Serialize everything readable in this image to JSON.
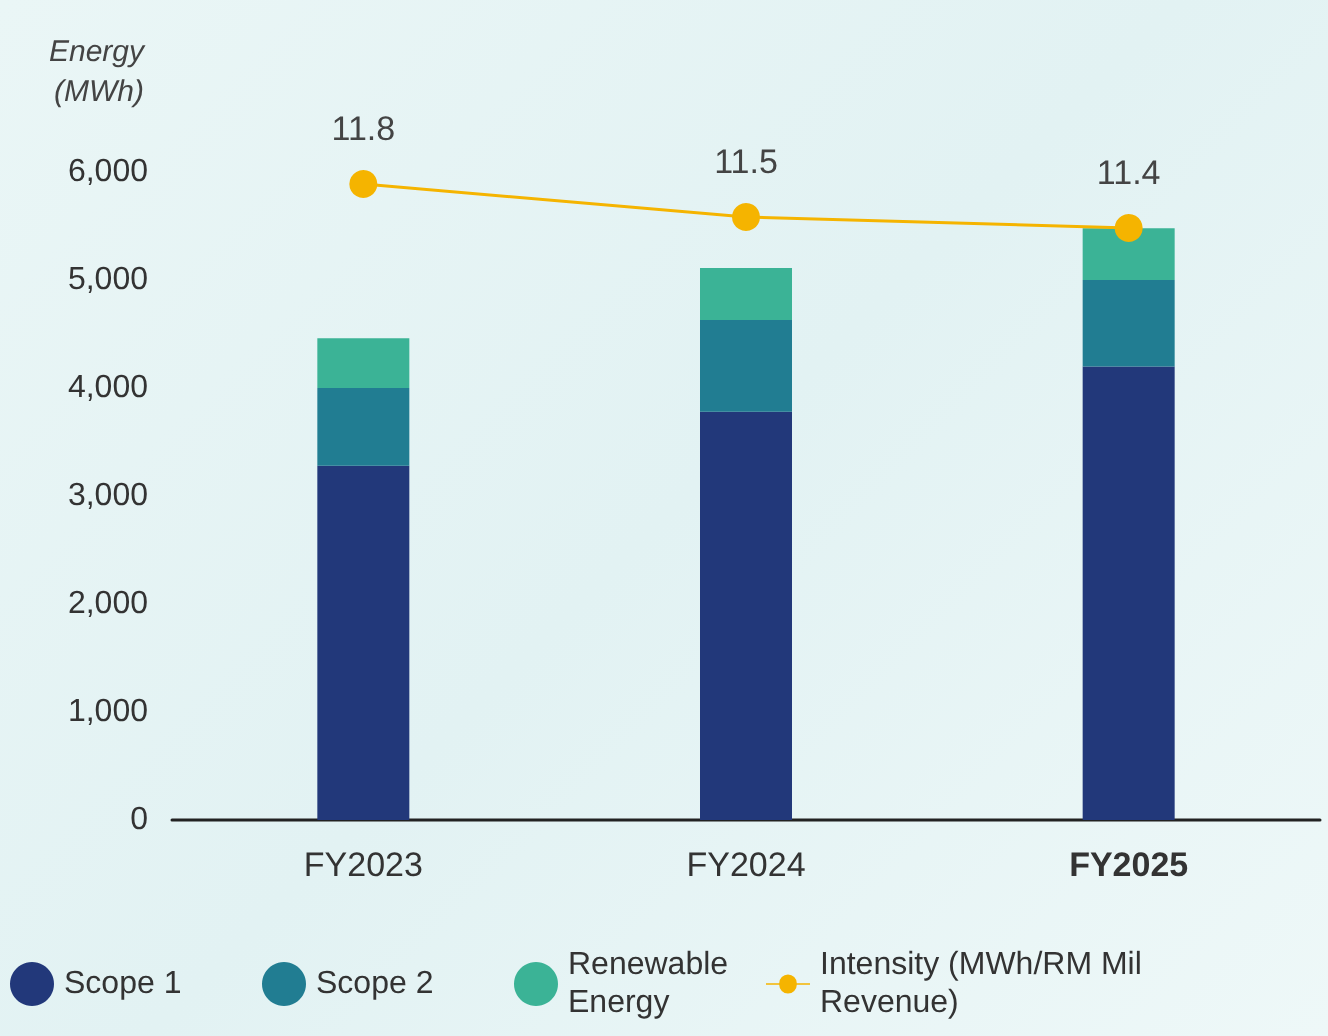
{
  "chart_data": {
    "type": "bar",
    "stacked": true,
    "ylabel": "Energy\n(MWh)",
    "categories": [
      "FY2023",
      "FY2024",
      "FY2025"
    ],
    "series": [
      {
        "name": "Scope 1",
        "color": "#22387a",
        "values": [
          3280,
          3780,
          4200
        ]
      },
      {
        "name": "Scope 2",
        "color": "#217d92",
        "values": [
          720,
          850,
          800
        ]
      },
      {
        "name": "Renewable Energy",
        "color": "#3bb396",
        "values": [
          460,
          480,
          480
        ]
      },
      {
        "name": "Intensity (MWh/RM Mil Revenue)",
        "type": "line",
        "axis": "y2",
        "color": "#f5b400",
        "values": [
          11.8,
          11.5,
          11.4
        ],
        "data_labels": true,
        "marker": "circle"
      }
    ],
    "ylim": [
      0,
      6000
    ],
    "yticks": [
      {
        "value": 0,
        "label": "0"
      },
      {
        "value": 1000,
        "label": "1,000"
      },
      {
        "value": 2000,
        "label": "2,000"
      },
      {
        "value": 3000,
        "label": "3,000"
      },
      {
        "value": 4000,
        "label": "4,000"
      },
      {
        "value": 5000,
        "label": "5,000"
      },
      {
        "value": 6000,
        "label": "6,000"
      }
    ],
    "grid": false,
    "legend": "bottom"
  }
}
